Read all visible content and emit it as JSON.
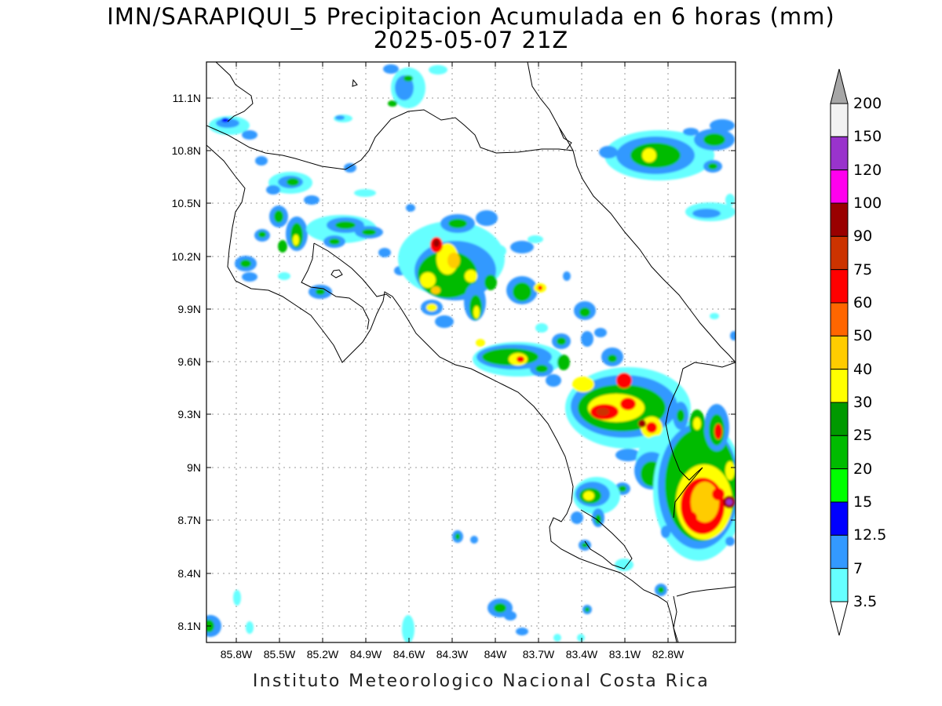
{
  "title": {
    "line1": "IMN/SARAPIQUI_5 Precipitacion Acumulada en 6 horas (mm)",
    "line2": "2025-05-07 21Z"
  },
  "footer": "Instituto Meteorologico Nacional Costa Rica",
  "axes": {
    "lat_labels": [
      "11.1N",
      "10.8N",
      "10.5N",
      "10.2N",
      "9.9N",
      "9.6N",
      "9.3N",
      "9N",
      "8.7N",
      "8.4N",
      "8.1N"
    ],
    "lon_labels": [
      "85.8W",
      "85.5W",
      "85.2W",
      "84.9W",
      "84.6W",
      "84.3W",
      "84W",
      "83.7W",
      "83.4W",
      "83.1W",
      "82.8W"
    ],
    "grid": true
  },
  "colorbar": {
    "labels": [
      "200",
      "150",
      "120",
      "100",
      "90",
      "75",
      "60",
      "50",
      "40",
      "30",
      "25",
      "20",
      "15",
      "12.5",
      "7",
      "3.5"
    ],
    "colors": [
      "#f2f2f2",
      "#9933cc",
      "#ff00ee",
      "#990000",
      "#cc3300",
      "#ff0000",
      "#ff6600",
      "#ffcc00",
      "#ffff00",
      "#009900",
      "#00bb00",
      "#00ff00",
      "#0000ff",
      "#3399ff",
      "#66ffff"
    ],
    "over_color": "#a6a6a6",
    "under_color": "#ffffff"
  },
  "colors": {
    "background": "#ffffff",
    "grid": "#9a9a9a",
    "coastline": "#000000"
  }
}
